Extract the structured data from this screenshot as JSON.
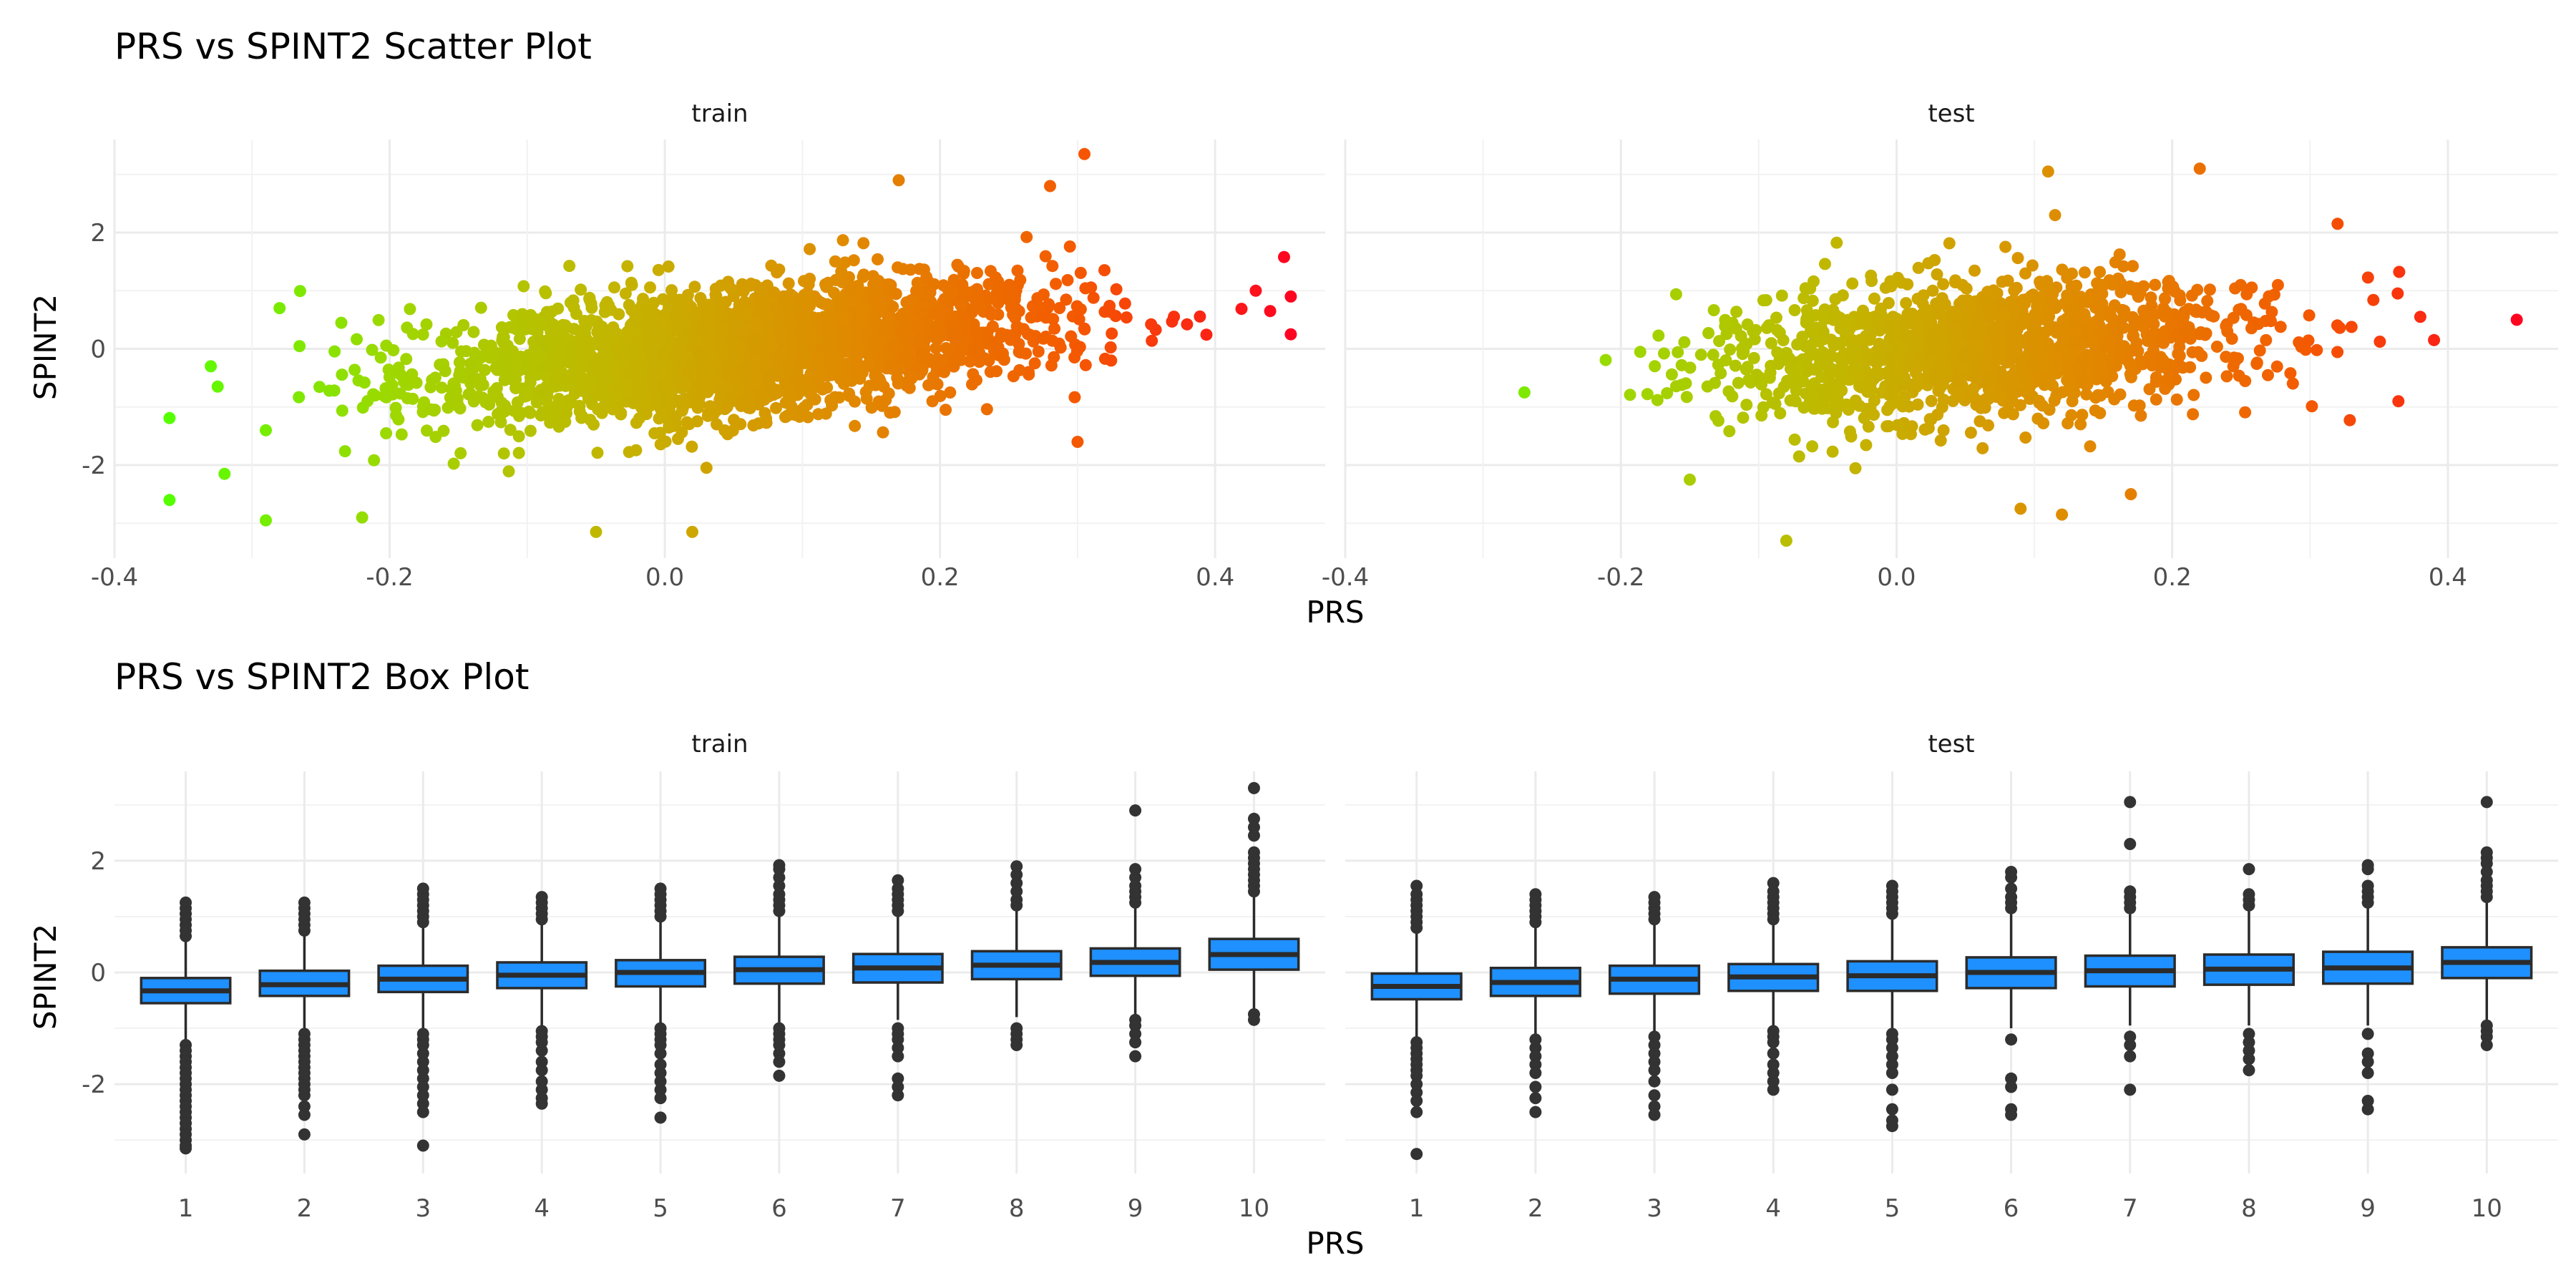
{
  "chart_data": [
    {
      "type": "scatter",
      "title": "PRS vs SPINT2 Scatter Plot",
      "xlabel": "PRS",
      "ylabel": "SPINT2",
      "panels": [
        "train",
        "test"
      ],
      "xlim": [
        -0.4,
        0.48
      ],
      "ylim": [
        -3.6,
        3.6
      ],
      "x_ticks": [
        -0.4,
        -0.2,
        0.0,
        0.2,
        0.4
      ],
      "x_tick_labels": [
        "-0.4",
        "-0.2",
        "0.0",
        "0.2",
        "0.4"
      ],
      "y_ticks": [
        -2,
        0,
        2
      ],
      "y_tick_labels": [
        "-2",
        "0",
        "2"
      ],
      "grid": true,
      "color_gradient": [
        "#55ff00",
        "#9fd700",
        "#c4b400",
        "#e08a00",
        "#f45a00",
        "#ff0022"
      ],
      "point_cloud": [
        {
          "panel": "train",
          "n_points": 2500,
          "x_mean": 0.06,
          "x_sd": 0.11,
          "slope": 2.3,
          "y_sd": 0.55,
          "x_range": [
            -0.36,
            0.46
          ]
        },
        {
          "panel": "test",
          "n_points": 1400,
          "x_mean": 0.06,
          "x_sd": 0.1,
          "slope": 1.7,
          "y_sd": 0.6,
          "x_range": [
            -0.28,
            0.45
          ]
        }
      ],
      "highlighted_points": [
        {
          "panel": "train",
          "points": [
            [
              -0.36,
              -2.6
            ],
            [
              -0.33,
              -0.3
            ],
            [
              -0.325,
              -0.65
            ],
            [
              -0.32,
              -2.15
            ],
            [
              -0.29,
              -1.4
            ],
            [
              -0.28,
              0.7
            ],
            [
              -0.29,
              -2.95
            ],
            [
              -0.22,
              -2.9
            ],
            [
              0.17,
              2.9
            ],
            [
              0.305,
              3.35
            ],
            [
              0.28,
              2.8
            ],
            [
              0.455,
              0.25
            ],
            [
              0.455,
              0.9
            ],
            [
              0.44,
              0.65
            ],
            [
              -0.05,
              -3.15
            ],
            [
              0.02,
              -3.15
            ],
            [
              0.3,
              -1.6
            ]
          ]
        },
        {
          "panel": "test",
          "points": [
            [
              0.45,
              0.5
            ],
            [
              0.11,
              3.05
            ],
            [
              0.22,
              3.1
            ],
            [
              0.115,
              2.3
            ],
            [
              0.32,
              2.15
            ],
            [
              -0.08,
              -3.3
            ],
            [
              0.12,
              -2.85
            ],
            [
              0.09,
              -2.75
            ],
            [
              -0.15,
              -2.25
            ],
            [
              -0.27,
              -0.75
            ],
            [
              0.17,
              -2.5
            ],
            [
              0.39,
              0.15
            ],
            [
              0.38,
              0.55
            ]
          ]
        }
      ]
    },
    {
      "type": "box",
      "title": "PRS vs SPINT2 Box Plot",
      "xlabel": "PRS",
      "ylabel": "SPINT2",
      "categories": [
        "1",
        "2",
        "3",
        "4",
        "5",
        "6",
        "7",
        "8",
        "9",
        "10"
      ],
      "ylim": [
        -3.6,
        3.6
      ],
      "y_ticks": [
        -2,
        0,
        2
      ],
      "y_tick_labels": [
        "-2",
        "0",
        "2"
      ],
      "grid": true,
      "box_fill": "#1e90ff",
      "box_stroke": "#2b2b2b",
      "outlier_color": "#333333",
      "panels": [
        {
          "name": "train",
          "boxes": [
            {
              "category": "1",
              "q1": -0.55,
              "median": -0.33,
              "q3": -0.1,
              "whisker_low": -1.2,
              "whisker_high": 0.6,
              "outliers": [
                0.65,
                0.75,
                0.85,
                0.95,
                1.05,
                1.15,
                1.25,
                -1.3,
                -1.4,
                -1.5,
                -1.6,
                -1.7,
                -1.8,
                -1.9,
                -2.0,
                -2.1,
                -2.2,
                -2.3,
                -2.4,
                -2.5,
                -2.6,
                -2.7,
                -2.8,
                -2.9,
                -3.0,
                -3.1,
                -3.15
              ]
            },
            {
              "category": "2",
              "q1": -0.42,
              "median": -0.22,
              "q3": 0.03,
              "whisker_low": -1.05,
              "whisker_high": 0.7,
              "outliers": [
                0.75,
                0.85,
                0.95,
                1.05,
                1.15,
                1.25,
                -1.1,
                -1.2,
                -1.3,
                -1.4,
                -1.5,
                -1.6,
                -1.7,
                -1.8,
                -1.9,
                -2.0,
                -2.1,
                -2.2,
                -2.4,
                -2.55,
                -2.9
              ]
            },
            {
              "category": "3",
              "q1": -0.35,
              "median": -0.12,
              "q3": 0.12,
              "whisker_low": -1.0,
              "whisker_high": 0.82,
              "outliers": [
                0.9,
                1.0,
                1.1,
                1.2,
                1.3,
                1.4,
                1.5,
                -1.1,
                -1.2,
                -1.3,
                -1.45,
                -1.6,
                -1.75,
                -1.9,
                -2.05,
                -2.2,
                -2.35,
                -2.5,
                -3.1
              ]
            },
            {
              "category": "4",
              "q1": -0.28,
              "median": -0.05,
              "q3": 0.18,
              "whisker_low": -0.95,
              "whisker_high": 0.88,
              "outliers": [
                0.95,
                1.05,
                1.15,
                1.25,
                1.35,
                -1.05,
                -1.15,
                -1.25,
                -1.4,
                -1.6,
                -1.75,
                -1.95,
                -2.1,
                -2.25,
                -2.35
              ]
            },
            {
              "category": "5",
              "q1": -0.25,
              "median": 0.0,
              "q3": 0.22,
              "whisker_low": -0.92,
              "whisker_high": 0.92,
              "outliers": [
                1.0,
                1.1,
                1.2,
                1.3,
                1.4,
                1.5,
                -1.0,
                -1.1,
                -1.2,
                -1.3,
                -1.45,
                -1.65,
                -1.8,
                -1.95,
                -2.1,
                -2.25,
                -2.6
              ]
            },
            {
              "category": "6",
              "q1": -0.2,
              "median": 0.05,
              "q3": 0.28,
              "whisker_low": -0.9,
              "whisker_high": 1.0,
              "outliers": [
                1.1,
                1.2,
                1.3,
                1.4,
                1.55,
                1.7,
                1.85,
                1.92,
                -1.0,
                -1.1,
                -1.2,
                -1.3,
                -1.45,
                -1.6,
                -1.85
              ]
            },
            {
              "category": "7",
              "q1": -0.18,
              "median": 0.08,
              "q3": 0.33,
              "whisker_low": -0.85,
              "whisker_high": 1.0,
              "outliers": [
                1.1,
                1.2,
                1.3,
                1.4,
                1.5,
                1.65,
                -1.0,
                -1.1,
                -1.2,
                -1.35,
                -1.5,
                -1.9,
                -2.05,
                -2.2
              ]
            },
            {
              "category": "8",
              "q1": -0.12,
              "median": 0.13,
              "q3": 0.38,
              "whisker_low": -0.8,
              "whisker_high": 1.1,
              "outliers": [
                1.2,
                1.3,
                1.45,
                1.6,
                1.75,
                1.9,
                -1.0,
                -1.1,
                -1.2,
                -1.3
              ]
            },
            {
              "category": "9",
              "q1": -0.06,
              "median": 0.18,
              "q3": 0.43,
              "whisker_low": -0.75,
              "whisker_high": 1.15,
              "outliers": [
                1.25,
                1.35,
                1.45,
                1.55,
                1.7,
                1.85,
                2.9,
                -0.85,
                -0.95,
                -1.1,
                -1.25,
                -1.5
              ]
            },
            {
              "category": "10",
              "q1": 0.05,
              "median": 0.32,
              "q3": 0.6,
              "whisker_low": -0.7,
              "whisker_high": 1.35,
              "outliers": [
                1.45,
                1.55,
                1.65,
                1.75,
                1.85,
                1.95,
                2.05,
                2.15,
                2.45,
                2.6,
                2.75,
                3.3,
                -0.75,
                -0.85
              ]
            }
          ]
        },
        {
          "name": "test",
          "boxes": [
            {
              "category": "1",
              "q1": -0.48,
              "median": -0.25,
              "q3": -0.02,
              "whisker_low": -1.15,
              "whisker_high": 0.72,
              "outliers": [
                0.8,
                0.9,
                1.0,
                1.1,
                1.2,
                1.3,
                1.4,
                1.55,
                -1.25,
                -1.35,
                -1.45,
                -1.55,
                -1.65,
                -1.75,
                -1.85,
                -2.0,
                -2.15,
                -2.3,
                -2.5,
                -3.25
              ]
            },
            {
              "category": "2",
              "q1": -0.42,
              "median": -0.18,
              "q3": 0.08,
              "whisker_low": -1.1,
              "whisker_high": 0.82,
              "outliers": [
                0.9,
                1.0,
                1.1,
                1.2,
                1.3,
                1.4,
                -1.2,
                -1.35,
                -1.5,
                -1.65,
                -1.8,
                -2.05,
                -2.25,
                -2.5
              ]
            },
            {
              "category": "3",
              "q1": -0.38,
              "median": -0.12,
              "q3": 0.12,
              "whisker_low": -1.05,
              "whisker_high": 0.85,
              "outliers": [
                0.95,
                1.05,
                1.15,
                1.25,
                1.35,
                -1.15,
                -1.3,
                -1.45,
                -1.6,
                -1.75,
                -1.95,
                -2.2,
                -2.4,
                -2.55
              ]
            },
            {
              "category": "4",
              "q1": -0.33,
              "median": -0.08,
              "q3": 0.15,
              "whisker_low": -1.0,
              "whisker_high": 0.88,
              "outliers": [
                0.95,
                1.05,
                1.15,
                1.25,
                1.35,
                1.45,
                1.6,
                -1.05,
                -1.15,
                -1.25,
                -1.45,
                -1.65,
                -1.8,
                -1.95,
                -2.1
              ]
            },
            {
              "category": "5",
              "q1": -0.33,
              "median": -0.06,
              "q3": 0.2,
              "whisker_low": -1.0,
              "whisker_high": 0.95,
              "outliers": [
                1.05,
                1.15,
                1.25,
                1.35,
                1.45,
                1.55,
                -1.1,
                -1.2,
                -1.35,
                -1.5,
                -1.65,
                -1.8,
                -2.1,
                -2.45,
                -2.65,
                -2.75
              ]
            },
            {
              "category": "6",
              "q1": -0.28,
              "median": 0.0,
              "q3": 0.27,
              "whisker_low": -1.0,
              "whisker_high": 1.05,
              "outliers": [
                1.15,
                1.25,
                1.35,
                1.5,
                1.7,
                1.8,
                -1.2,
                -1.9,
                -2.05,
                -2.45,
                -2.55
              ]
            },
            {
              "category": "7",
              "q1": -0.25,
              "median": 0.03,
              "q3": 0.3,
              "whisker_low": -0.95,
              "whisker_high": 1.05,
              "outliers": [
                1.15,
                1.25,
                1.35,
                1.45,
                2.3,
                3.05,
                -1.15,
                -1.3,
                -1.5,
                -2.1
              ]
            },
            {
              "category": "8",
              "q1": -0.22,
              "median": 0.06,
              "q3": 0.32,
              "whisker_low": -0.95,
              "whisker_high": 1.1,
              "outliers": [
                1.2,
                1.3,
                1.4,
                1.85,
                -1.1,
                -1.25,
                -1.4,
                -1.55,
                -1.75
              ]
            },
            {
              "category": "9",
              "q1": -0.2,
              "median": 0.08,
              "q3": 0.37,
              "whisker_low": -0.95,
              "whisker_high": 1.15,
              "outliers": [
                1.25,
                1.35,
                1.45,
                1.55,
                1.85,
                1.92,
                -1.1,
                -1.45,
                -1.6,
                -1.8,
                -2.3,
                -2.45
              ]
            },
            {
              "category": "10",
              "q1": -0.1,
              "median": 0.18,
              "q3": 0.45,
              "whisker_low": -0.9,
              "whisker_high": 1.25,
              "outliers": [
                1.35,
                1.45,
                1.55,
                1.65,
                1.8,
                1.95,
                2.05,
                2.15,
                3.05,
                -0.95,
                -1.05,
                -1.15,
                -1.3
              ]
            }
          ]
        }
      ]
    }
  ]
}
